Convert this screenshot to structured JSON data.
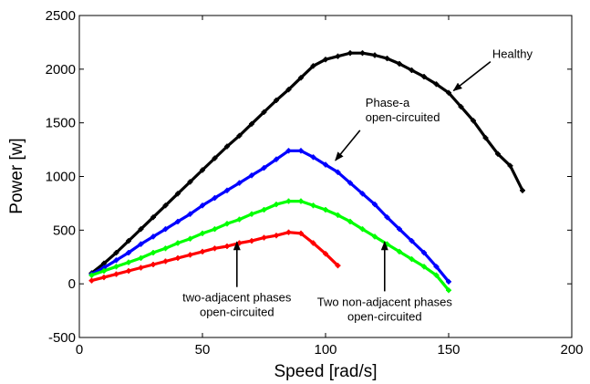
{
  "chart_data": {
    "type": "line",
    "xlabel": "Speed [rad/s]",
    "ylabel": "Power [w]",
    "xlim": [
      0,
      200
    ],
    "ylim": [
      -500,
      2500
    ],
    "xticks": [
      "0",
      "50",
      "100",
      "150",
      "200"
    ],
    "yticks": [
      "-500",
      "0",
      "500",
      "1000",
      "1500",
      "2000",
      "2500"
    ],
    "grid": false,
    "series": [
      {
        "key": "healthy",
        "color": "#000000",
        "x": [
          5,
          10,
          15,
          20,
          25,
          30,
          35,
          40,
          45,
          50,
          55,
          60,
          65,
          70,
          75,
          80,
          85,
          90,
          95,
          100,
          105,
          110,
          115,
          120,
          125,
          130,
          135,
          140,
          145,
          150,
          155,
          160,
          165,
          170,
          175,
          180
        ],
        "y": [
          100,
          190,
          290,
          400,
          510,
          620,
          730,
          840,
          950,
          1060,
          1170,
          1280,
          1380,
          1490,
          1600,
          1710,
          1810,
          1920,
          2030,
          2090,
          2120,
          2150,
          2150,
          2130,
          2100,
          2050,
          1990,
          1930,
          1860,
          1780,
          1650,
          1520,
          1360,
          1210,
          1100,
          870
        ]
      },
      {
        "key": "phase-a",
        "color": "#0000ff",
        "x": [
          5,
          10,
          15,
          20,
          25,
          30,
          35,
          40,
          45,
          50,
          55,
          60,
          65,
          70,
          75,
          80,
          85,
          90,
          95,
          100,
          105,
          110,
          115,
          120,
          125,
          130,
          135,
          140,
          145,
          150
        ],
        "y": [
          90,
          150,
          220,
          290,
          370,
          440,
          510,
          580,
          650,
          730,
          800,
          870,
          940,
          1010,
          1080,
          1160,
          1240,
          1240,
          1180,
          1110,
          1040,
          940,
          840,
          740,
          620,
          510,
          400,
          290,
          160,
          20
        ]
      },
      {
        "key": "two-non-adjacent",
        "color": "#00ff00",
        "x": [
          5,
          10,
          15,
          20,
          25,
          30,
          35,
          40,
          45,
          50,
          55,
          60,
          65,
          70,
          75,
          80,
          85,
          90,
          95,
          100,
          105,
          110,
          115,
          120,
          125,
          130,
          135,
          140,
          145,
          150
        ],
        "y": [
          80,
          120,
          160,
          200,
          240,
          290,
          330,
          380,
          420,
          470,
          510,
          560,
          600,
          650,
          690,
          740,
          770,
          770,
          730,
          690,
          640,
          580,
          510,
          440,
          370,
          300,
          230,
          160,
          80,
          -60
        ]
      },
      {
        "key": "two-adjacent",
        "color": "#ff0000",
        "x": [
          5,
          10,
          15,
          20,
          25,
          30,
          35,
          40,
          45,
          50,
          55,
          60,
          65,
          70,
          75,
          80,
          85,
          90,
          95,
          100,
          105
        ],
        "y": [
          30,
          60,
          90,
          120,
          150,
          180,
          210,
          240,
          270,
          300,
          330,
          350,
          380,
          400,
          430,
          450,
          480,
          470,
          380,
          280,
          170
        ]
      }
    ],
    "annotations": [
      {
        "key": "healthy",
        "lines": [
          "Healthy"
        ],
        "arrow_from": [
          167,
          2070
        ],
        "arrow_to": [
          152,
          1800
        ]
      },
      {
        "key": "phase-a",
        "lines": [
          "Phase-a",
          "open-circuited"
        ],
        "arrow_from": [
          114,
          1430
        ],
        "arrow_to": [
          104,
          1150
        ]
      },
      {
        "key": "two-adjacent",
        "lines": [
          "two-adjacent phases",
          "open-circuited"
        ],
        "arrow_from": [
          64,
          -30
        ],
        "arrow_to": [
          64,
          390
        ]
      },
      {
        "key": "two-non-adjacent",
        "lines": [
          "Two non-adjacent phases",
          "open-circuited"
        ],
        "arrow_from": [
          124,
          -70
        ],
        "arrow_to": [
          124,
          390
        ]
      }
    ]
  }
}
